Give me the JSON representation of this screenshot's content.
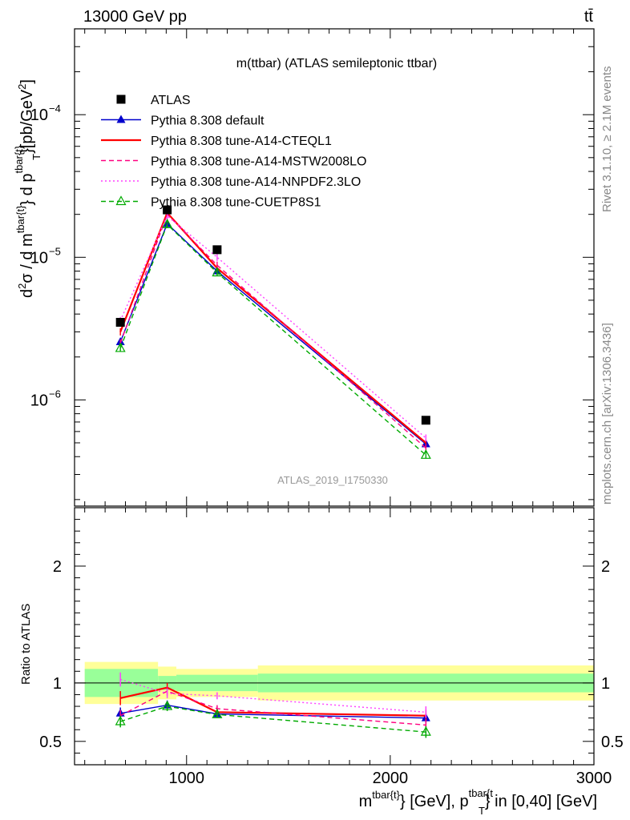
{
  "header": {
    "left": "13000 GeV pp",
    "right": "tt̄"
  },
  "title": "m(ttbar) (ATLAS semileptonic ttbar)",
  "side_labels": {
    "rivet": "Rivet 3.1.10, ≥ 2.1M events",
    "mcplots": "mcplots.cern.ch [arXiv:1306.3436]"
  },
  "watermark": "ATLAS_2019_I1750330",
  "chart_data": {
    "type": "line",
    "xlabel": "m^{tbar{t}} [GeV], p_T^{tbar{t}} in [0,40] [GeV]",
    "xlim": [
      450,
      3000
    ],
    "x_ticks": [
      1000,
      2000,
      3000
    ],
    "main": {
      "ylabel": "d²σ / d m^{tbar{t}} d p_T^{tbar{t}} [pb/GeV²]",
      "yscale": "log",
      "ylim": [
        1.8e-07,
        0.0004
      ],
      "y_ticks": [
        {
          "value": 1e-06,
          "base": "10",
          "exp": "−6"
        },
        {
          "value": 1e-05,
          "base": "10",
          "exp": "−5"
        },
        {
          "value": 0.0001,
          "base": "10",
          "exp": "−4"
        }
      ]
    },
    "ratio": {
      "ylabel": "Ratio to ATLAS",
      "ylim": [
        0.3,
        2.5
      ],
      "y_ticks": [
        0.5,
        1,
        2
      ],
      "y_tick_labels": [
        "0.5",
        "1",
        "2"
      ]
    },
    "bins": [
      {
        "lo": 500,
        "hi": 860
      },
      {
        "lo": 860,
        "hi": 950
      },
      {
        "lo": 950,
        "hi": 1350
      },
      {
        "lo": 1350,
        "hi": 3000
      }
    ],
    "data": {
      "name": "ATLAS",
      "x": [
        675,
        905,
        1150,
        2175
      ],
      "y": [
        3.5e-06,
        2.15e-05,
        1.13e-05,
        7.2e-07
      ],
      "band_inner": [
        0.12,
        0.06,
        0.07,
        0.08
      ],
      "band_outer": [
        0.18,
        0.14,
        0.12,
        0.15
      ]
    },
    "series": [
      {
        "name": "Pythia 8.308 default",
        "color": "#0000cc",
        "dash": "solid",
        "marker": "triangle",
        "x": [
          675,
          905,
          1150,
          2175
        ],
        "y": [
          2.55e-06,
          1.72e-05,
          8e-06,
          4.9e-07
        ],
        "ratio": [
          0.74,
          0.81,
          0.735,
          0.7
        ],
        "ratio_err": [
          0.05,
          0.04,
          0.025,
          0.04
        ]
      },
      {
        "name": "Pythia 8.308 tune-A14-CTEQL1",
        "color": "#ff0000",
        "dash": "solid",
        "marker": "none",
        "x": [
          675,
          905,
          1150,
          2175
        ],
        "y": [
          3e-06,
          2.05e-05,
          8.4e-06,
          5e-07
        ],
        "ratio": [
          0.87,
          0.96,
          0.75,
          0.72
        ],
        "ratio_err": [
          0.06,
          0.04,
          0.03,
          0.05
        ]
      },
      {
        "name": "Pythia 8.308 tune-A14-MSTW2008LO",
        "color": "#ff0080",
        "dash": "dashed",
        "marker": "none",
        "x": [
          675,
          905,
          1150,
          2175
        ],
        "y": [
          2.5e-06,
          2e-05,
          8.8e-06,
          4.6e-07
        ],
        "ratio": [
          0.72,
          0.93,
          0.78,
          0.64
        ],
        "ratio_err": [
          0.05,
          0.04,
          0.03,
          0.05
        ]
      },
      {
        "name": "Pythia 8.308 tune-A14-NNPDF2.3LO",
        "color": "#ff40ff",
        "dash": "dotted",
        "marker": "none",
        "x": [
          675,
          905,
          1150,
          2175
        ],
        "y": [
          3.6e-06,
          1.95e-05,
          1e-05,
          5.4e-07
        ],
        "ratio": [
          1.03,
          0.91,
          0.89,
          0.75
        ],
        "ratio_err": [
          0.06,
          0.04,
          0.03,
          0.05
        ]
      },
      {
        "name": "Pythia 8.308 tune-CUETP8S1",
        "color": "#00aa00",
        "dash": "dashed",
        "marker": "open-triangle",
        "x": [
          675,
          905,
          1150,
          2175
        ],
        "y": [
          2.3e-06,
          1.7e-05,
          7.8e-06,
          4.1e-07
        ],
        "ratio": [
          0.67,
          0.8,
          0.73,
          0.58
        ],
        "ratio_err": [
          0.05,
          0.04,
          0.03,
          0.05
        ]
      }
    ]
  }
}
